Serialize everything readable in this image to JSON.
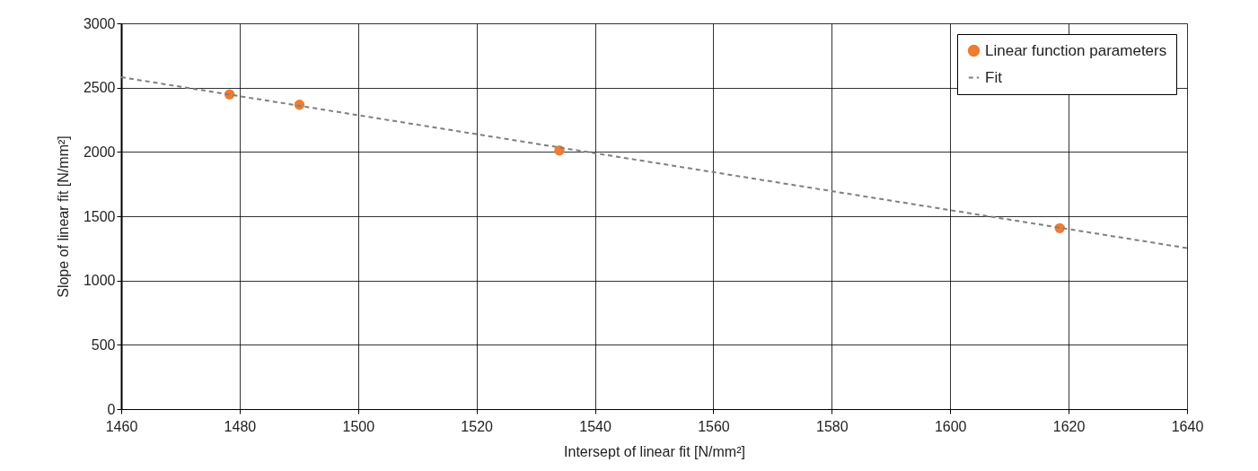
{
  "chart_data": {
    "type": "scatter",
    "xlabel": "Intersept of linear fit   [N/mm²]",
    "ylabel": "Slope of linear fit   [N/mm²]",
    "xlim": [
      1460,
      1640
    ],
    "xticks": [
      1460,
      1480,
      1500,
      1520,
      1540,
      1560,
      1580,
      1600,
      1620,
      1640
    ],
    "ylim": [
      0,
      3000
    ],
    "yticks": [
      0,
      500,
      1000,
      1500,
      2000,
      2500,
      3000
    ],
    "grid": true,
    "legend": "top right",
    "marker": "circle",
    "series": [
      {
        "name": "Linear function parameters",
        "color": "#ed7d31",
        "x": [
          1478.3,
          1490.1,
          1534.0,
          1618.5
        ],
        "values": [
          2447,
          2367,
          2011,
          1407
        ]
      },
      {
        "name": "Fit",
        "type": "line",
        "color": "#7f7f7f",
        "line_style": "dashed",
        "marker": "none",
        "x": [
          1460,
          1640
        ],
        "values": [
          2581,
          1252
        ]
      }
    ]
  }
}
